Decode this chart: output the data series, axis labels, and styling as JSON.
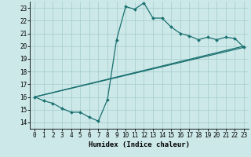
{
  "xlabel": "Humidex (Indice chaleur)",
  "bg_color": "#cce8e8",
  "grid_color": "#aad0d0",
  "line_color": "#1a7070",
  "xlim": [
    -0.5,
    23.5
  ],
  "ylim": [
    13.5,
    23.5
  ],
  "xticks": [
    0,
    1,
    2,
    3,
    4,
    5,
    6,
    7,
    8,
    9,
    10,
    11,
    12,
    13,
    14,
    15,
    16,
    17,
    18,
    19,
    20,
    21,
    22,
    23
  ],
  "yticks": [
    14,
    15,
    16,
    17,
    18,
    19,
    20,
    21,
    22,
    23
  ],
  "line1_x": [
    0,
    1,
    2,
    3,
    4,
    5,
    6,
    7,
    8,
    9,
    10,
    11,
    12,
    13,
    14,
    15,
    16,
    17,
    18,
    19,
    20,
    21,
    22,
    23
  ],
  "line1_y": [
    16.0,
    15.7,
    15.5,
    15.1,
    14.8,
    14.8,
    14.4,
    14.1,
    15.8,
    20.5,
    23.1,
    22.9,
    23.4,
    22.2,
    22.2,
    21.5,
    21.0,
    20.8,
    20.5,
    20.7,
    20.5,
    20.7,
    20.6,
    19.9
  ],
  "line2_x": [
    0,
    23
  ],
  "line2_y": [
    16.0,
    20.0
  ],
  "line3_x": [
    0,
    23
  ],
  "line3_y": [
    16.0,
    19.9
  ],
  "tick_fontsize": 5.5,
  "label_fontsize": 6.5
}
